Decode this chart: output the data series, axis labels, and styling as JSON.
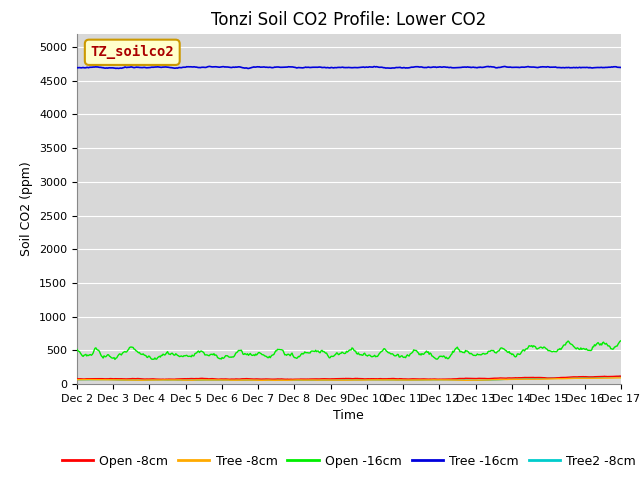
{
  "title": "Tonzi Soil CO2 Profile: Lower CO2",
  "ylabel": "Soil CO2 (ppm)",
  "xlabel": "Time",
  "annotation_text": "TZ_soilco2",
  "legend_entries": [
    "Open -8cm",
    "Tree -8cm",
    "Open -16cm",
    "Tree -16cm",
    "Tree2 -8cm"
  ],
  "line_colors": [
    "#ff0000",
    "#ffaa00",
    "#00ee00",
    "#0000dd",
    "#00cccc"
  ],
  "ylim": [
    0,
    5200
  ],
  "yticks": [
    0,
    500,
    1000,
    1500,
    2000,
    2500,
    3000,
    3500,
    4000,
    4500,
    5000
  ],
  "xtick_labels": [
    "Dec 2",
    "Dec 3",
    "Dec 4",
    "Dec 5",
    "Dec 6",
    "Dec 7",
    "Dec 8",
    "Dec 9",
    "Dec 9",
    "Dec 10",
    "Dec 11",
    "Dec 12",
    "Dec 13",
    "Dec 14",
    "Dec 15",
    "Dec 16",
    "Dec 17"
  ],
  "n_points": 600,
  "background_color": "#d8d8d8",
  "plot_bg_color": "#d8d8d8",
  "fig_bg_color": "#ffffff",
  "title_fontsize": 12,
  "axis_label_fontsize": 9,
  "tick_fontsize": 8,
  "legend_fontsize": 9
}
